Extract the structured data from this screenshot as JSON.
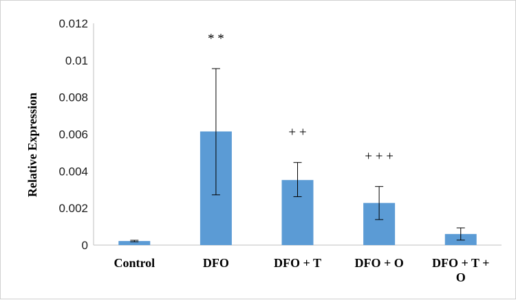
{
  "chart_data": {
    "type": "bar",
    "title": "",
    "xlabel": "",
    "ylabel": "Relative Expression",
    "ylim": [
      0,
      0.012
    ],
    "yticks": [
      "0",
      "0.002",
      "0.004",
      "0.006",
      "0.008",
      "0.01",
      "0.012"
    ],
    "categories": [
      [
        "Control"
      ],
      [
        "DFO"
      ],
      [
        "DFO + T"
      ],
      [
        "DFO + O"
      ],
      [
        "DFO + T +",
        "O"
      ]
    ],
    "values": [
      0.00022,
      0.00615,
      0.00352,
      0.00228,
      0.0006
    ],
    "error_low": [
      0.00018,
      0.00272,
      0.00262,
      0.00138,
      0.00027
    ],
    "error_high": [
      0.00026,
      0.00955,
      0.00447,
      0.00317,
      0.00093
    ],
    "annotations": [
      "",
      "* *",
      "+ +",
      "+ + +",
      ""
    ],
    "bar_color": "#5b9bd5",
    "error_color": "#000000",
    "grid": false,
    "legend": "none"
  }
}
